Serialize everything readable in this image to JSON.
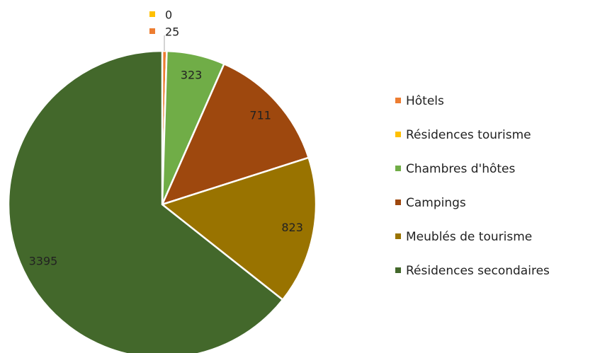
{
  "chart_data": {
    "type": "pie",
    "categories": [
      "Hôtels",
      "Résidences tourisme",
      "Chambres d'hôtes",
      "Campings",
      "Meublés de tourisme",
      "Résidences secondaires"
    ],
    "values": [
      25,
      0,
      323,
      711,
      823,
      3395
    ],
    "colors": [
      "#ed7d31",
      "#ffc000",
      "#70ad47",
      "#9e480e",
      "#997300",
      "#43682b"
    ],
    "legend": "right"
  }
}
